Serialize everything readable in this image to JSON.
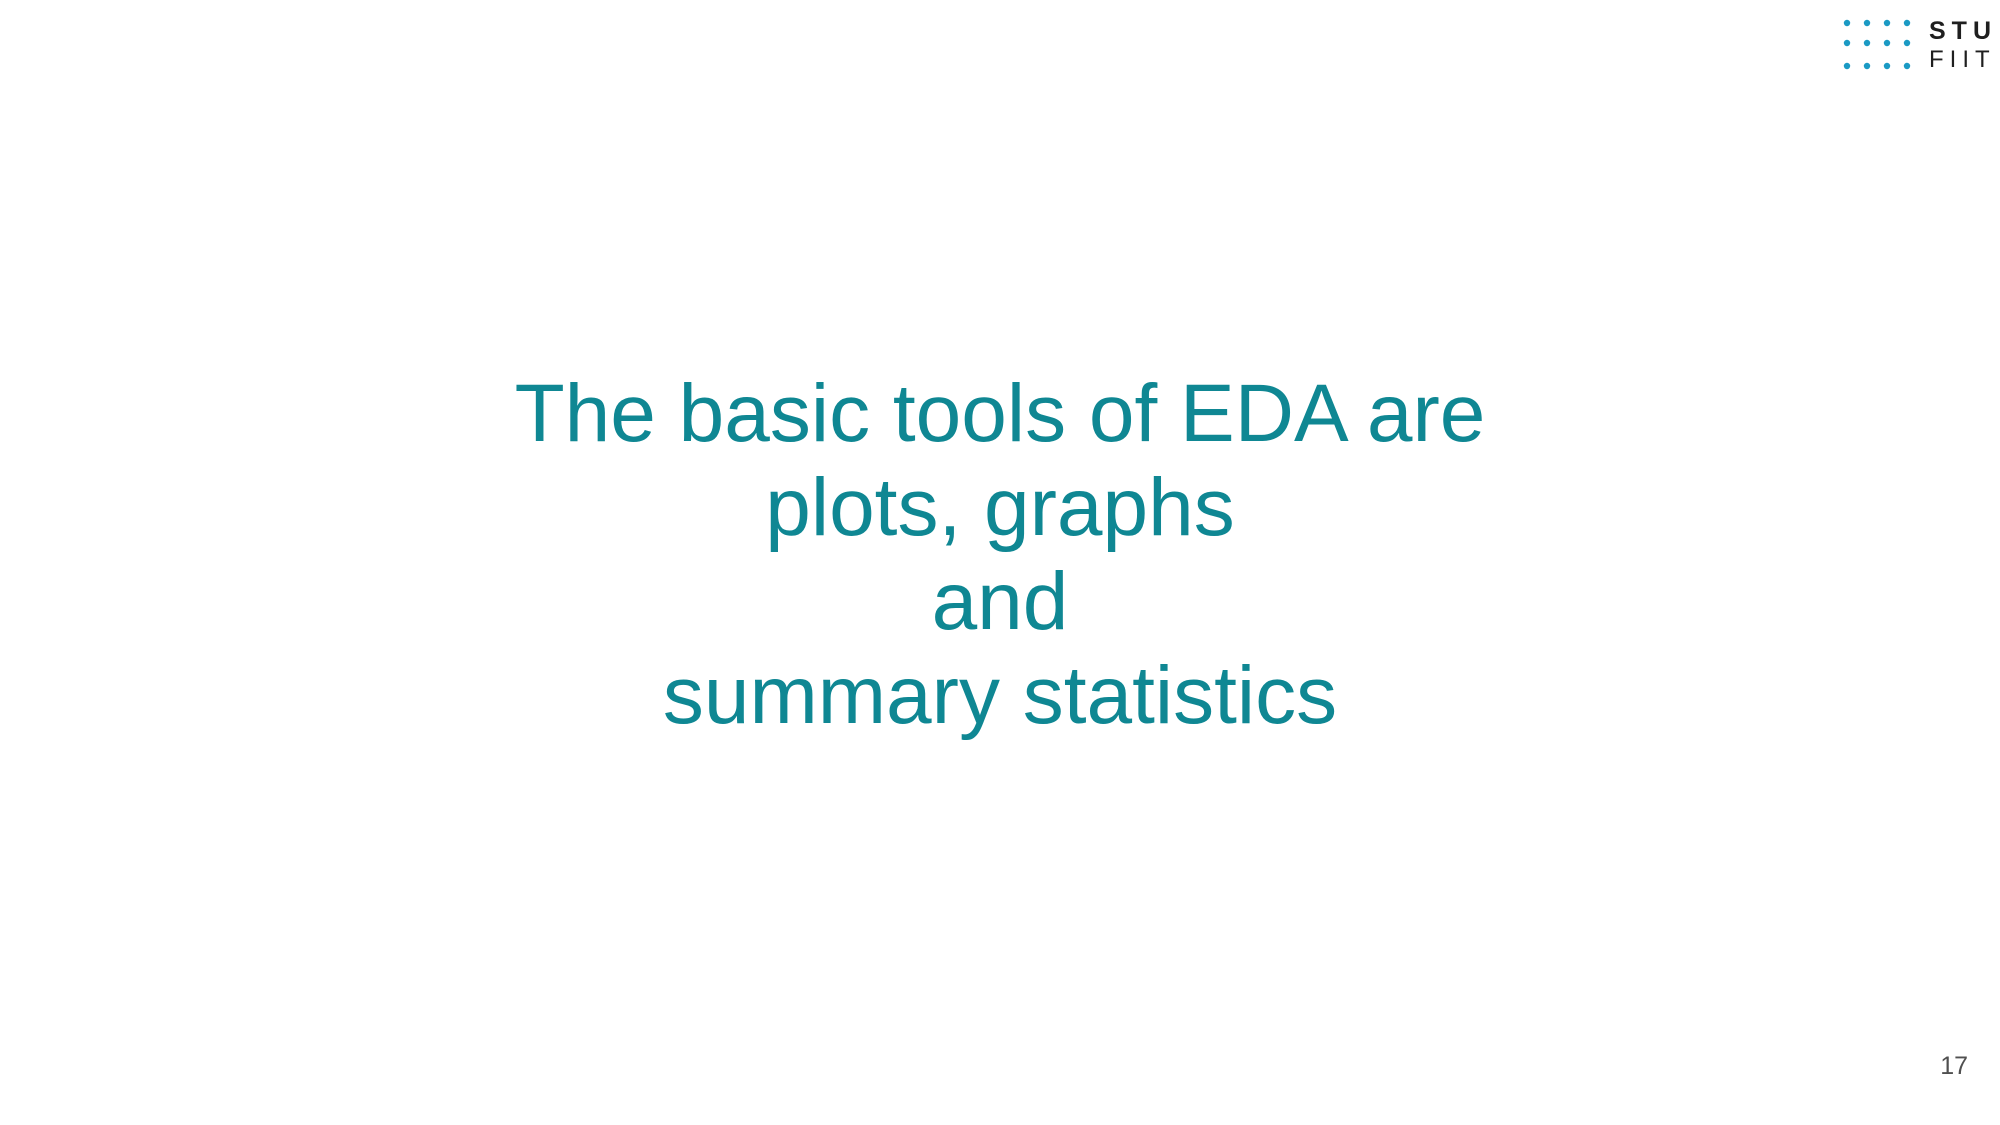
{
  "slide": {
    "logo": {
      "line1": "STU",
      "line2": "FIIT",
      "dot_color": "#1a9ac4"
    },
    "title_lines": [
      "The basic tools of EDA are",
      "plots, graphs",
      "and",
      "summary statistics"
    ],
    "text_color": "#0f8793",
    "page_number": "17"
  }
}
